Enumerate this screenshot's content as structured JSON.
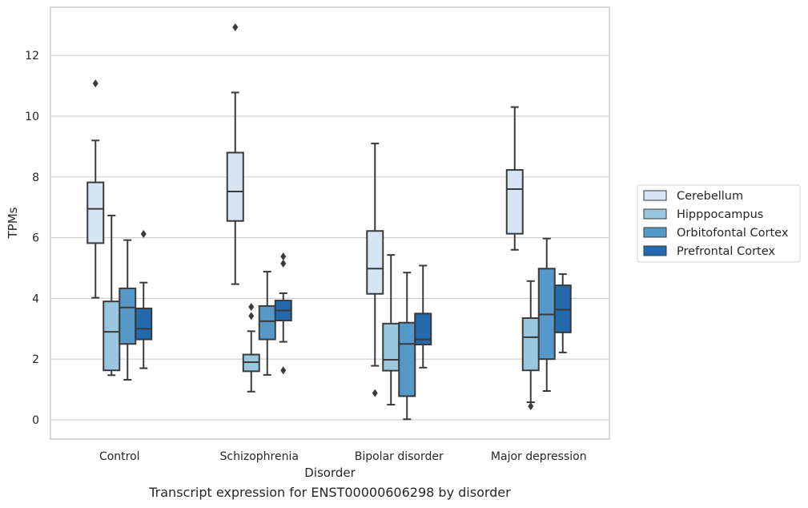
{
  "caption": "Transcript expression for ENST00000606298 by disorder",
  "chart_data": {
    "type": "box",
    "xlabel": "Disorder",
    "ylabel": "TPMs",
    "ylim": [
      -0.6,
      13.6
    ],
    "yticks": [
      0,
      2,
      4,
      6,
      8,
      10,
      12
    ],
    "categories": [
      "Control",
      "Schizophrenia",
      "Bipolar disorder",
      "Major depression"
    ],
    "grid": true,
    "legend_position": "right",
    "series": [
      {
        "name": "Cerebellum",
        "color": "#d6e5f4",
        "boxes": [
          {
            "whislo": 4.02,
            "q1": 5.82,
            "med": 6.95,
            "q3": 7.82,
            "whishi": 9.2,
            "fliers": [
              11.08
            ]
          },
          {
            "whislo": 4.47,
            "q1": 6.55,
            "med": 7.52,
            "q3": 8.8,
            "whishi": 10.78,
            "fliers": [
              12.93
            ]
          },
          {
            "whislo": 1.78,
            "q1": 4.15,
            "med": 4.98,
            "q3": 6.22,
            "whishi": 9.1,
            "fliers": [
              0.88
            ]
          },
          {
            "whislo": 5.6,
            "q1": 6.13,
            "med": 7.6,
            "q3": 8.23,
            "whishi": 10.3,
            "fliers": []
          }
        ]
      },
      {
        "name": "Hipppocampus",
        "color": "#9ac7e0",
        "boxes": [
          {
            "whislo": 1.47,
            "q1": 1.63,
            "med": 2.9,
            "q3": 3.9,
            "whishi": 6.73,
            "fliers": []
          },
          {
            "whislo": 0.93,
            "q1": 1.6,
            "med": 1.9,
            "q3": 2.15,
            "whishi": 2.92,
            "fliers": [
              3.42,
              3.72
            ]
          },
          {
            "whislo": 0.5,
            "q1": 1.62,
            "med": 1.98,
            "q3": 3.17,
            "whishi": 5.43,
            "fliers": []
          },
          {
            "whislo": 0.58,
            "q1": 1.63,
            "med": 2.72,
            "q3": 3.35,
            "whishi": 4.57,
            "fliers": [
              0.45
            ]
          }
        ]
      },
      {
        "name": "Orbitofontal Cortex",
        "color": "#5699c8",
        "boxes": [
          {
            "whislo": 1.32,
            "q1": 2.5,
            "med": 3.7,
            "q3": 4.33,
            "whishi": 5.92,
            "fliers": []
          },
          {
            "whislo": 1.48,
            "q1": 2.65,
            "med": 3.25,
            "q3": 3.75,
            "whishi": 4.88,
            "fliers": []
          },
          {
            "whislo": 0.02,
            "q1": 0.78,
            "med": 2.5,
            "q3": 3.2,
            "whishi": 4.85,
            "fliers": []
          },
          {
            "whislo": 0.95,
            "q1": 2.0,
            "med": 3.47,
            "q3": 4.98,
            "whishi": 5.97,
            "fliers": []
          }
        ]
      },
      {
        "name": "Prefrontal Cortex",
        "color": "#2369ac",
        "boxes": [
          {
            "whislo": 1.7,
            "q1": 2.65,
            "med": 3.0,
            "q3": 3.67,
            "whishi": 4.52,
            "fliers": [
              6.12
            ]
          },
          {
            "whislo": 2.57,
            "q1": 3.27,
            "med": 3.6,
            "q3": 3.93,
            "whishi": 4.17,
            "fliers": [
              5.15,
              5.38,
              1.63
            ]
          },
          {
            "whislo": 1.72,
            "q1": 2.48,
            "med": 2.65,
            "q3": 3.5,
            "whishi": 5.08,
            "fliers": []
          },
          {
            "whislo": 2.22,
            "q1": 2.88,
            "med": 3.63,
            "q3": 4.43,
            "whishi": 4.8,
            "fliers": []
          }
        ]
      }
    ]
  }
}
